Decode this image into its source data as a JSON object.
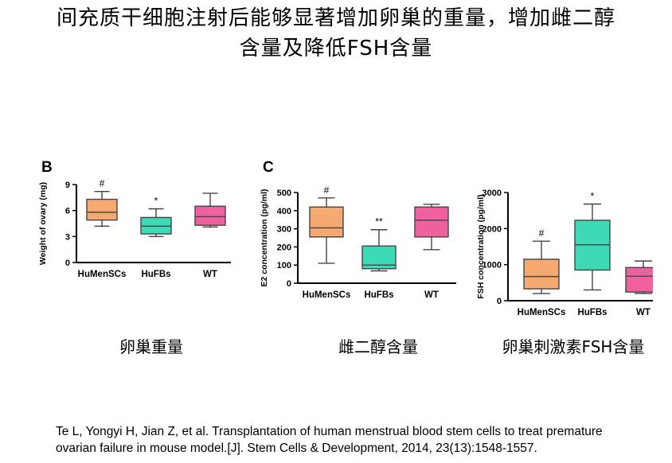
{
  "slide": {
    "title_line1": "间充质干细胞注射后能够显著增加卵巢的重量，增加雌二醇",
    "title_line2": "含量及降低FSH含量",
    "citation_line1": "Te L, Yongyi H, Jian Z, et al. Transplantation of human menstrual blood stem cells to treat premature",
    "citation_line2": "ovarian failure in mouse model.[J]. Stem Cells & Development, 2014, 23(13):1548-1557."
  },
  "chart_data": [
    {
      "type": "boxplot",
      "panel_label": "B",
      "caption": "卵巢重量",
      "ylabel": "Weight of ovary (mg)",
      "ylim": [
        0,
        9
      ],
      "yticks": [
        0,
        3,
        6,
        9
      ],
      "categories": [
        "HuMenSCs",
        "HuFBs",
        "WT"
      ],
      "boxes": [
        {
          "min": 4.2,
          "q1": 4.9,
          "median": 5.8,
          "q3": 7.3,
          "max": 8.2,
          "annotation": "#",
          "color": "#f5a86f"
        },
        {
          "min": 3.0,
          "q1": 3.3,
          "median": 4.2,
          "q3": 5.2,
          "max": 6.2,
          "annotation": "*",
          "color": "#3ddbb5"
        },
        {
          "min": 4.1,
          "q1": 4.3,
          "median": 5.3,
          "q3": 6.5,
          "max": 8.0,
          "annotation": "",
          "color": "#ee609e"
        }
      ]
    },
    {
      "type": "boxplot",
      "panel_label": "C",
      "caption": "雌二醇含量",
      "ylabel": "E2 concentration (pg/ml)",
      "ylim": [
        0,
        500
      ],
      "yticks": [
        0,
        100,
        200,
        300,
        400,
        500
      ],
      "categories": [
        "HuMenSCs",
        "HuFBs",
        "WT"
      ],
      "boxes": [
        {
          "min": 110,
          "q1": 255,
          "median": 305,
          "q3": 420,
          "max": 470,
          "annotation": "#",
          "color": "#f5a86f"
        },
        {
          "min": 68,
          "q1": 80,
          "median": 100,
          "q3": 205,
          "max": 295,
          "annotation": "**",
          "color": "#3ddbb5"
        },
        {
          "min": 185,
          "q1": 255,
          "median": 348,
          "q3": 420,
          "max": 435,
          "annotation": "",
          "color": "#ee609e"
        }
      ]
    },
    {
      "type": "boxplot",
      "panel_label": "",
      "caption": "卵巢刺激素FSH含量",
      "ylabel": "FSH concentration (pg/ml)",
      "ylim": [
        0,
        3000
      ],
      "yticks": [
        0,
        1000,
        2000,
        3000
      ],
      "categories": [
        "HuMenSCs",
        "HuFBs",
        "WT"
      ],
      "boxes": [
        {
          "min": 200,
          "q1": 330,
          "median": 670,
          "q3": 1150,
          "max": 1650,
          "annotation": "#",
          "color": "#f5a86f"
        },
        {
          "min": 300,
          "q1": 850,
          "median": 1550,
          "q3": 2230,
          "max": 2680,
          "annotation": "*",
          "color": "#3ddbb5"
        },
        {
          "min": 200,
          "q1": 240,
          "median": 680,
          "q3": 920,
          "max": 1100,
          "annotation": "",
          "color": "#ee609e"
        }
      ]
    }
  ]
}
